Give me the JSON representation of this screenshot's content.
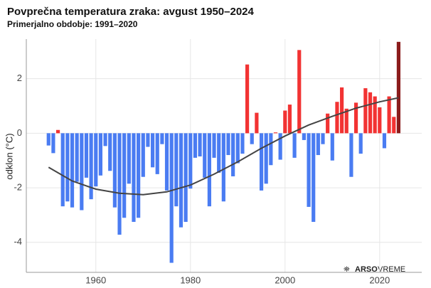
{
  "chart_data": {
    "type": "bar",
    "title": "Povprečna temperatura zraka: avgust 1950–2024",
    "subtitle": "Primerjalno obdobje: 1991–2020",
    "y_label": "odklon (°C)",
    "watermark": [
      "ARSO",
      "VREME"
    ],
    "x": [
      1950,
      1951,
      1952,
      1953,
      1954,
      1955,
      1956,
      1957,
      1958,
      1959,
      1960,
      1961,
      1962,
      1963,
      1964,
      1965,
      1966,
      1967,
      1968,
      1969,
      1970,
      1971,
      1972,
      1973,
      1974,
      1975,
      1976,
      1977,
      1978,
      1979,
      1980,
      1981,
      1982,
      1983,
      1984,
      1985,
      1986,
      1987,
      1988,
      1989,
      1990,
      1991,
      1992,
      1993,
      1994,
      1995,
      1996,
      1997,
      1998,
      1999,
      2000,
      2001,
      2002,
      2003,
      2004,
      2005,
      2006,
      2007,
      2008,
      2009,
      2010,
      2011,
      2012,
      2013,
      2014,
      2015,
      2016,
      2017,
      2018,
      2019,
      2020,
      2021,
      2022,
      2023,
      2024
    ],
    "values": [
      -0.45,
      -0.73,
      0.12,
      -2.68,
      -2.5,
      -2.72,
      -1.78,
      -2.82,
      -1.63,
      -2.42,
      -1.95,
      -1.55,
      -0.47,
      -1.38,
      -2.72,
      -3.72,
      -3.1,
      -1.85,
      -3.25,
      -3.1,
      -1.6,
      -0.5,
      -1.25,
      -1.5,
      -0.4,
      -2.1,
      -4.75,
      -2.68,
      -3.45,
      -3.25,
      -2.03,
      -0.9,
      -0.85,
      -1.63,
      -2.68,
      -0.9,
      -1.45,
      -2.5,
      -0.8,
      -1.58,
      -1.1,
      -0.75,
      2.52,
      -0.4,
      0.75,
      -2.1,
      -1.85,
      -1.17,
      0.03,
      -0.97,
      0.83,
      1.05,
      -0.9,
      3.05,
      -0.25,
      -2.7,
      -3.25,
      -0.8,
      -0.4,
      0.72,
      -1.0,
      1.15,
      1.68,
      0.9,
      -1.6,
      1.12,
      -0.75,
      1.65,
      1.5,
      1.35,
      0.95,
      -0.55,
      1.35,
      0.6,
      3.35
    ],
    "positive_color": "#f23333",
    "negative_color": "#4a7cf2",
    "highlight_color": "#8b1c1c",
    "highlight_x": 2024,
    "trend": {
      "color": "#444444",
      "x": [
        1950,
        1955,
        1960,
        1965,
        1970,
        1975,
        1980,
        1985,
        1990,
        1995,
        2000,
        2005,
        2010,
        2015,
        2020,
        2024
      ],
      "values": [
        -1.25,
        -1.75,
        -2.05,
        -2.2,
        -2.25,
        -2.15,
        -1.9,
        -1.5,
        -1.05,
        -0.55,
        -0.1,
        0.3,
        0.62,
        0.92,
        1.15,
        1.3
      ]
    },
    "xlim": [
      1945.3,
      2028.9
    ],
    "xticks": [
      1960,
      1980,
      2000,
      2020
    ],
    "ylim": [
      -5.1,
      3.45
    ],
    "yticks": [
      -4,
      -2,
      0,
      2
    ],
    "grid": true
  }
}
